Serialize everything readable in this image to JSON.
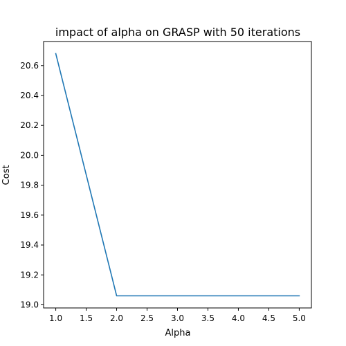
{
  "chart_data": {
    "type": "line",
    "title": "impact of alpha on GRASP with 50 iterations",
    "xlabel": "Alpha",
    "ylabel": "Cost",
    "x": [
      1,
      2,
      3,
      4,
      5
    ],
    "series": [
      {
        "values": [
          20.68,
          19.06,
          19.06,
          19.06,
          19.06
        ],
        "color": "#1f77b4"
      }
    ],
    "xlim": [
      0.8,
      5.2
    ],
    "ylim": [
      18.979,
      20.761
    ],
    "xticks": [
      "1.0",
      "1.5",
      "2.0",
      "2.5",
      "3.0",
      "3.5",
      "4.0",
      "4.5",
      "5.0"
    ],
    "yticks": [
      "19.0",
      "19.2",
      "19.4",
      "19.6",
      "19.8",
      "20.0",
      "20.2",
      "20.4",
      "20.6"
    ],
    "grid": false,
    "legend": "none"
  }
}
